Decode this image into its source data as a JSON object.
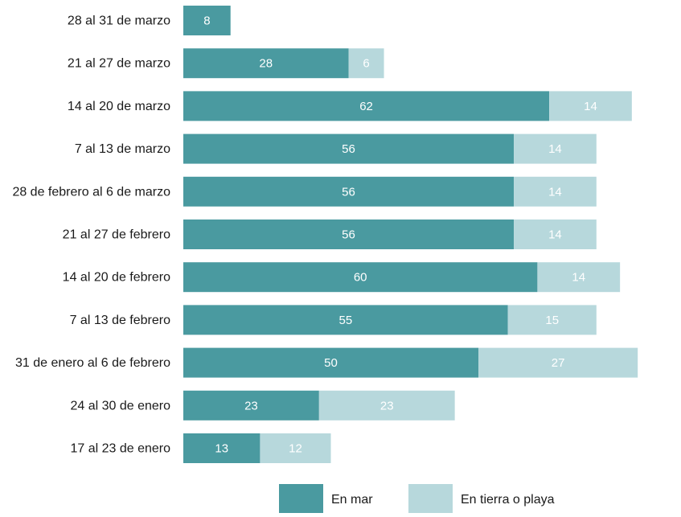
{
  "chart_data": {
    "type": "bar",
    "orientation": "horizontal",
    "stacked": true,
    "categories": [
      "28 al 31 de marzo",
      "21 al 27 de marzo",
      "14 al 20 de marzo",
      "7 al 13 de marzo",
      "28 de febrero al 6  de marzo",
      "21 al 27 de febrero",
      "14 al 20 de febrero",
      "7 al 13 de febrero",
      "31 de enero al 6 de febrero",
      "24 al 30 de enero",
      "17 al 23 de enero"
    ],
    "series": [
      {
        "name": "En mar",
        "color": "#4a9aa0",
        "values": [
          8,
          28,
          62,
          56,
          56,
          56,
          60,
          55,
          50,
          23,
          13
        ]
      },
      {
        "name": "En tierra o playa",
        "color": "#b7d8dc",
        "values": [
          null,
          6,
          14,
          14,
          14,
          14,
          14,
          15,
          27,
          23,
          12
        ]
      }
    ],
    "title": "",
    "xlabel": "",
    "ylabel": "",
    "xlim": [
      0,
      77
    ],
    "grid": false,
    "legend_position": "bottom"
  }
}
